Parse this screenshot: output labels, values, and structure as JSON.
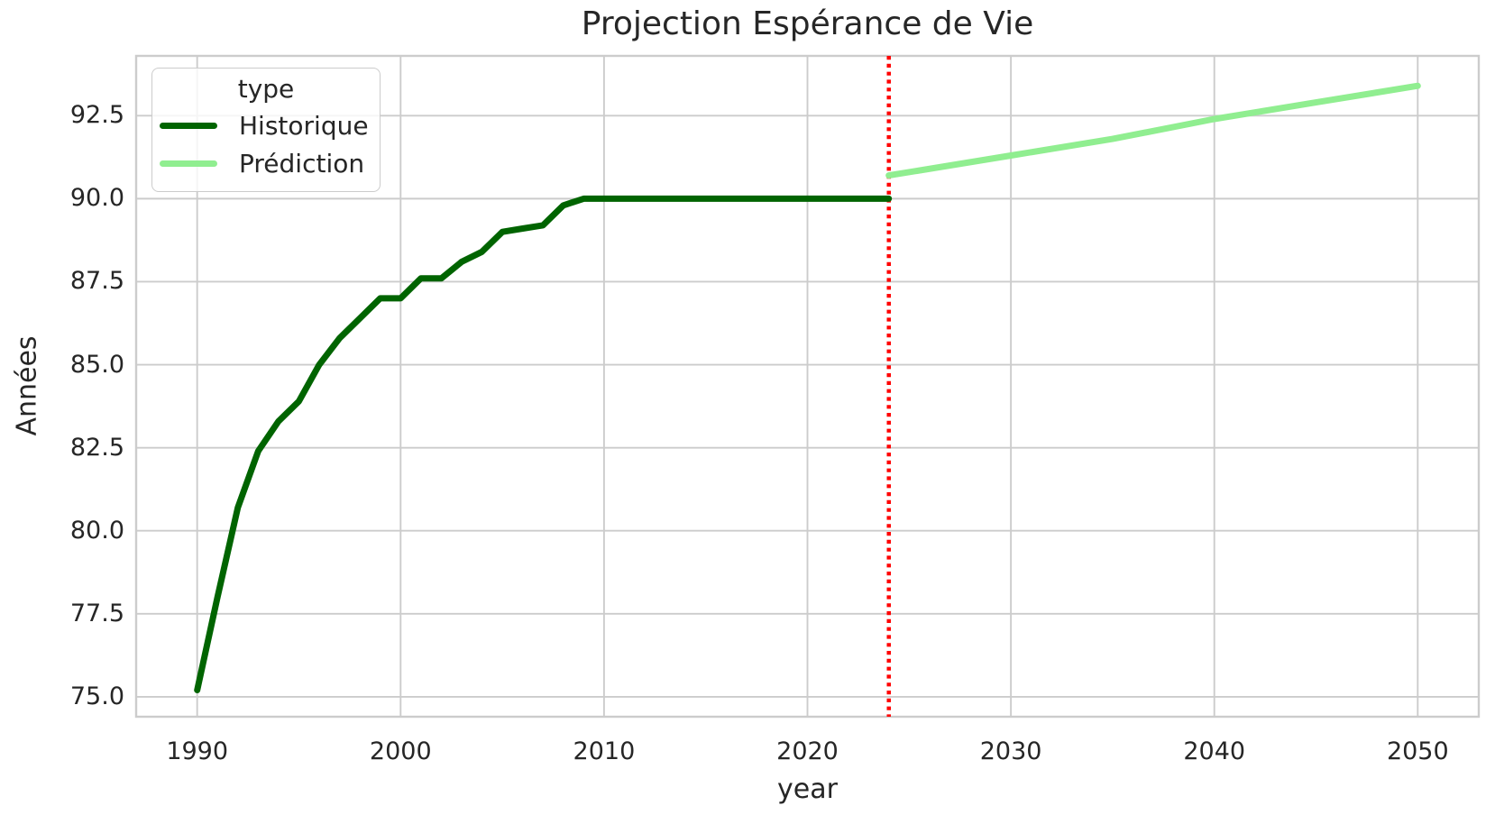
{
  "title": "Projection Espérance de Vie",
  "xlabel": "year",
  "ylabel": "Années",
  "legend": {
    "title": "type",
    "items": [
      {
        "label": "Historique",
        "color": "#006400"
      },
      {
        "label": "Prédiction",
        "color": "#90EE90"
      }
    ]
  },
  "colors": {
    "historic_line": "#006400",
    "prediction_line": "#90EE90",
    "forecast_divider": "#ff0000",
    "grid": "#cccccc",
    "spine": "#cccccc",
    "text": "#262626",
    "background": "#ffffff"
  },
  "chart_data": {
    "type": "line",
    "title": "Projection Espérance de Vie",
    "xlabel": "year",
    "ylabel": "Années",
    "xlim": [
      1987,
      2053
    ],
    "ylim": [
      74.4,
      94.3
    ],
    "x_ticks": [
      1990,
      2000,
      2010,
      2020,
      2030,
      2040,
      2050
    ],
    "y_ticks": [
      75.0,
      77.5,
      80.0,
      82.5,
      85.0,
      87.5,
      90.0,
      92.5
    ],
    "grid": true,
    "legend_position": "upper left",
    "series": [
      {
        "name": "Historique",
        "color": "#006400",
        "x": [
          1990,
          1991,
          1992,
          1993,
          1994,
          1995,
          1996,
          1997,
          1998,
          1999,
          2000,
          2001,
          2002,
          2003,
          2004,
          2005,
          2006,
          2007,
          2008,
          2009,
          2010,
          2011,
          2012,
          2013,
          2014,
          2015,
          2016,
          2017,
          2018,
          2019,
          2020,
          2021,
          2022,
          2023,
          2024
        ],
        "y": [
          75.2,
          78.0,
          80.7,
          82.4,
          83.3,
          83.9,
          85.0,
          85.8,
          86.4,
          87.0,
          87.0,
          87.6,
          87.6,
          88.1,
          88.4,
          89.0,
          89.1,
          89.2,
          89.8,
          90.0,
          90.0,
          90.0,
          90.0,
          90.0,
          90.0,
          90.0,
          90.0,
          90.0,
          90.0,
          90.0,
          90.0,
          90.0,
          90.0,
          90.0,
          90.0
        ]
      },
      {
        "name": "Prédiction",
        "color": "#90EE90",
        "x": [
          2024,
          2030,
          2035,
          2040,
          2045,
          2050
        ],
        "y": [
          90.7,
          91.3,
          91.8,
          92.4,
          92.9,
          93.4
        ]
      }
    ],
    "annotations": [
      {
        "type": "vline",
        "x": 2024,
        "color": "#ff0000",
        "style": "dotted"
      }
    ]
  }
}
